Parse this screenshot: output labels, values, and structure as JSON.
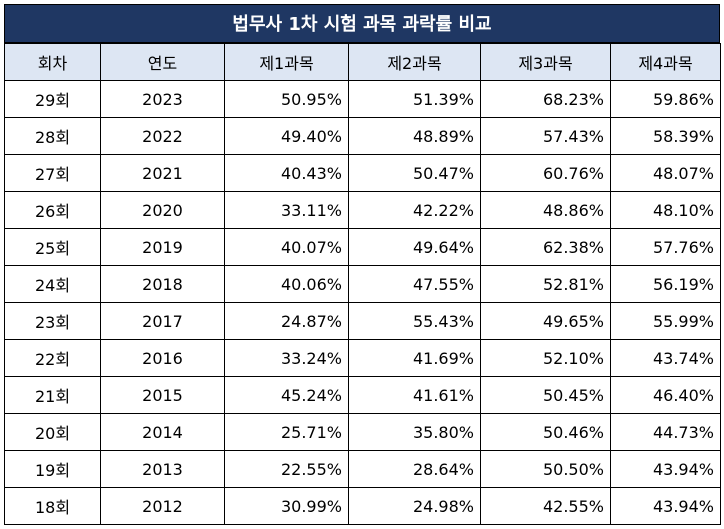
{
  "title": "법무사 1차 시험 과목 과락률 비교",
  "headers": [
    "회차",
    "연도",
    "제1과목",
    "제2과목",
    "제3과목",
    "제4과목"
  ],
  "rows": [
    [
      "29회",
      "2023",
      "50.95%",
      "51.39%",
      "68.23%",
      "59.86%"
    ],
    [
      "28회",
      "2022",
      "49.40%",
      "48.89%",
      "57.43%",
      "58.39%"
    ],
    [
      "27회",
      "2021",
      "40.43%",
      "50.47%",
      "60.76%",
      "48.07%"
    ],
    [
      "26회",
      "2020",
      "33.11%",
      "42.22%",
      "48.86%",
      "48.10%"
    ],
    [
      "25회",
      "2019",
      "40.07%",
      "49.64%",
      "62.38%",
      "57.76%"
    ],
    [
      "24회",
      "2018",
      "40.06%",
      "47.55%",
      "52.81%",
      "56.19%"
    ],
    [
      "23회",
      "2017",
      "24.87%",
      "55.43%",
      "49.65%",
      "55.99%"
    ],
    [
      "22회",
      "2016",
      "33.24%",
      "41.69%",
      "52.10%",
      "43.74%"
    ],
    [
      "21회",
      "2015",
      "45.24%",
      "41.61%",
      "50.45%",
      "46.40%"
    ],
    [
      "20회",
      "2014",
      "25.71%",
      "35.80%",
      "50.46%",
      "44.73%"
    ],
    [
      "19회",
      "2013",
      "22.55%",
      "28.64%",
      "50.50%",
      "43.94%"
    ],
    [
      "18회",
      "2012",
      "30.99%",
      "24.98%",
      "42.55%",
      "43.94%"
    ]
  ]
}
